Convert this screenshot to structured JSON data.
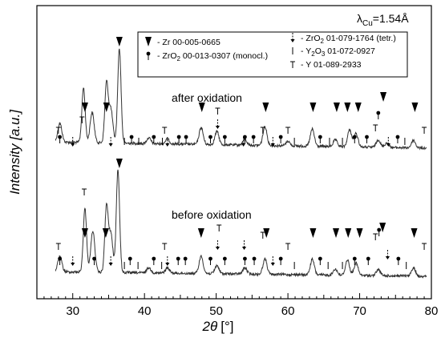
{
  "chart_data": {
    "type": "line",
    "xlabel_symbol": "2θ",
    "xlabel_unit": "[°]",
    "ylabel": "Intensity [a.u.]",
    "wavelength": {
      "lambda": "λ",
      "sub": "Cu",
      "value": "=1.54Å"
    },
    "xlim": [
      25,
      80
    ],
    "xticks": [
      30,
      40,
      50,
      60,
      70,
      80
    ],
    "colors": {
      "line": "#333333",
      "frame": "#000000"
    },
    "legend": [
      {
        "marker": "zr",
        "text": "- Zr  00-005-0665"
      },
      {
        "marker": "zro2m",
        "text_parts": [
          "- ZrO",
          "2",
          "  00-013-0307 (monocl.)"
        ]
      },
      {
        "marker": "zro2t",
        "text_parts": [
          "- ZrO",
          "2",
          "  01-079-1764 (tetr.)"
        ]
      },
      {
        "marker": "y2o3",
        "text_parts": [
          "- Y",
          "2",
          "O",
          "3",
          "  01-072-0927"
        ]
      },
      {
        "marker": "y",
        "text": "- Y  01-089-2933"
      }
    ],
    "series": [
      {
        "annotation": "after oxidation",
        "peaks": [
          {
            "x": 28.2,
            "h": 0.2
          },
          {
            "x": 31.5,
            "h": 0.58
          },
          {
            "x": 32.7,
            "h": 0.32
          },
          {
            "x": 34.7,
            "h": 0.62
          },
          {
            "x": 35.3,
            "h": 0.36
          },
          {
            "x": 36.5,
            "h": 1.0
          },
          {
            "x": 40.6,
            "h": 0.06
          },
          {
            "x": 43.2,
            "h": 0.05
          },
          {
            "x": 47.9,
            "h": 0.18
          },
          {
            "x": 50.1,
            "h": 0.14
          },
          {
            "x": 54.0,
            "h": 0.06
          },
          {
            "x": 56.8,
            "h": 0.2
          },
          {
            "x": 60.0,
            "h": 0.05
          },
          {
            "x": 63.4,
            "h": 0.18
          },
          {
            "x": 66.6,
            "h": 0.07
          },
          {
            "x": 68.6,
            "h": 0.18
          },
          {
            "x": 69.5,
            "h": 0.14
          },
          {
            "x": 72.6,
            "h": 0.08
          },
          {
            "x": 73.8,
            "h": 0.05
          },
          {
            "x": 77.5,
            "h": 0.08
          }
        ]
      },
      {
        "annotation": "before oxidation",
        "peaks": [
          {
            "x": 28.2,
            "h": 0.15
          },
          {
            "x": 31.7,
            "h": 0.62
          },
          {
            "x": 32.8,
            "h": 0.4
          },
          {
            "x": 34.7,
            "h": 0.63
          },
          {
            "x": 35.3,
            "h": 0.38
          },
          {
            "x": 36.3,
            "h": 1.0
          },
          {
            "x": 40.6,
            "h": 0.05
          },
          {
            "x": 43.2,
            "h": 0.05
          },
          {
            "x": 47.9,
            "h": 0.17
          },
          {
            "x": 50.1,
            "h": 0.08
          },
          {
            "x": 54.0,
            "h": 0.06
          },
          {
            "x": 56.8,
            "h": 0.15
          },
          {
            "x": 63.4,
            "h": 0.15
          },
          {
            "x": 66.6,
            "h": 0.06
          },
          {
            "x": 68.3,
            "h": 0.15
          },
          {
            "x": 69.5,
            "h": 0.12
          },
          {
            "x": 72.6,
            "h": 0.06
          },
          {
            "x": 77.5,
            "h": 0.08
          }
        ]
      }
    ],
    "markers_after": [
      {
        "type": "y",
        "x": 28.0
      },
      {
        "type": "zro2m",
        "x": 28.2
      },
      {
        "type": "zro2t",
        "x": 30.0
      },
      {
        "type": "zr",
        "x": 31.7
      },
      {
        "type": "y",
        "x": 31.3
      },
      {
        "type": "zr",
        "x": 34.7
      },
      {
        "type": "zro2t",
        "x": 35.3
      },
      {
        "type": "zr",
        "x": 36.5
      },
      {
        "type": "y2o3",
        "x": 37.2
      },
      {
        "type": "zro2m",
        "x": 38.2
      },
      {
        "type": "y2o3",
        "x": 39.2
      },
      {
        "type": "zro2m",
        "x": 41.3
      },
      {
        "type": "y2o3",
        "x": 42.5
      },
      {
        "type": "y",
        "x": 42.8
      },
      {
        "type": "zro2t",
        "x": 43.2
      },
      {
        "type": "zro2m",
        "x": 44.8
      },
      {
        "type": "zro2m",
        "x": 45.8
      },
      {
        "type": "zr",
        "x": 48.0
      },
      {
        "type": "zro2m",
        "x": 49.2
      },
      {
        "type": "zro2t",
        "x": 50.2
      },
      {
        "type": "y",
        "x": 50.2
      },
      {
        "type": "zro2m",
        "x": 51.2
      },
      {
        "type": "zro2t",
        "x": 53.8
      },
      {
        "type": "zro2m",
        "x": 54.0
      },
      {
        "type": "zro2m",
        "x": 55.2
      },
      {
        "type": "y",
        "x": 56.5
      },
      {
        "type": "zr",
        "x": 56.9
      },
      {
        "type": "zro2t",
        "x": 57.9
      },
      {
        "type": "zro2m",
        "x": 59.0
      },
      {
        "type": "y",
        "x": 60.0
      },
      {
        "type": "y2o3",
        "x": 60.9
      },
      {
        "type": "zr",
        "x": 63.5
      },
      {
        "type": "zro2m",
        "x": 64.5
      },
      {
        "type": "y2o3",
        "x": 65.8
      },
      {
        "type": "zr",
        "x": 66.8
      },
      {
        "type": "y2o3",
        "x": 67.6
      },
      {
        "type": "zr",
        "x": 68.3
      },
      {
        "type": "zro2m",
        "x": 69.3
      },
      {
        "type": "zr",
        "x": 69.8
      },
      {
        "type": "zro2m",
        "x": 71.0
      },
      {
        "type": "y",
        "x": 72.2
      },
      {
        "type": "zr",
        "x": 73.3
      },
      {
        "type": "zro2m",
        "x": 72.6
      },
      {
        "type": "zro2t",
        "x": 74.0
      },
      {
        "type": "zro2m",
        "x": 75.3
      },
      {
        "type": "y2o3",
        "x": 76.3
      },
      {
        "type": "zr",
        "x": 77.7
      },
      {
        "type": "y",
        "x": 79.0
      }
    ],
    "markers_before": [
      {
        "type": "y",
        "x": 28.0
      },
      {
        "type": "zro2m",
        "x": 28.2
      },
      {
        "type": "zro2t",
        "x": 30.0
      },
      {
        "type": "y",
        "x": 31.6
      },
      {
        "type": "zr",
        "x": 31.7
      },
      {
        "type": "zro2m",
        "x": 33.0
      },
      {
        "type": "zr",
        "x": 34.6
      },
      {
        "type": "zro2t",
        "x": 35.3
      },
      {
        "type": "zr",
        "x": 36.5
      },
      {
        "type": "y2o3",
        "x": 37.2
      },
      {
        "type": "zro2m",
        "x": 38.0
      },
      {
        "type": "y2o3",
        "x": 39.1
      },
      {
        "type": "zro2m",
        "x": 41.3
      },
      {
        "type": "y2o3",
        "x": 42.4
      },
      {
        "type": "y",
        "x": 42.8
      },
      {
        "type": "zro2t",
        "x": 43.2
      },
      {
        "type": "zro2m",
        "x": 44.7
      },
      {
        "type": "zro2m",
        "x": 45.7
      },
      {
        "type": "zr",
        "x": 47.9
      },
      {
        "type": "zro2m",
        "x": 49.2
      },
      {
        "type": "zro2t",
        "x": 50.2
      },
      {
        "type": "y",
        "x": 50.4
      },
      {
        "type": "zro2m",
        "x": 51.2
      },
      {
        "type": "zro2t",
        "x": 53.9
      },
      {
        "type": "zro2m",
        "x": 54.0
      },
      {
        "type": "zro2m",
        "x": 55.3
      },
      {
        "type": "y",
        "x": 56.5
      },
      {
        "type": "zr",
        "x": 57.0
      },
      {
        "type": "zro2t",
        "x": 57.9
      },
      {
        "type": "zro2m",
        "x": 59.0
      },
      {
        "type": "y",
        "x": 60.0
      },
      {
        "type": "y2o3",
        "x": 60.9
      },
      {
        "type": "zr",
        "x": 63.5
      },
      {
        "type": "zro2m",
        "x": 64.5
      },
      {
        "type": "y2o3",
        "x": 65.6
      },
      {
        "type": "zr",
        "x": 66.7
      },
      {
        "type": "y2o3",
        "x": 67.6
      },
      {
        "type": "zr",
        "x": 68.4
      },
      {
        "type": "zro2m",
        "x": 69.3
      },
      {
        "type": "zr",
        "x": 70.0
      },
      {
        "type": "zro2m",
        "x": 71.2
      },
      {
        "type": "y",
        "x": 72.2
      },
      {
        "type": "zr",
        "x": 73.2
      },
      {
        "type": "zro2m",
        "x": 72.7
      },
      {
        "type": "zro2t",
        "x": 73.9
      },
      {
        "type": "zro2m",
        "x": 75.4
      },
      {
        "type": "y2o3",
        "x": 76.5
      },
      {
        "type": "zr",
        "x": 77.6
      },
      {
        "type": "y",
        "x": 79.0
      }
    ]
  }
}
